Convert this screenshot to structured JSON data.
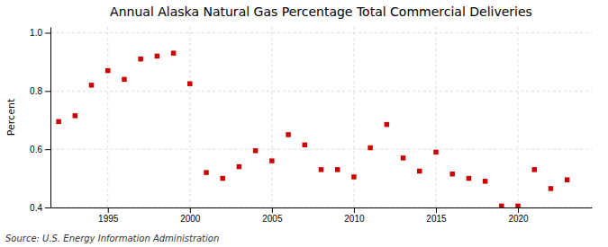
{
  "chart_data": {
    "type": "scatter",
    "title": "Annual Alaska Natural Gas Percentage Total Commercial Deliveries",
    "ylabel": "Percent",
    "source": "Source: U.S. Energy Information Administration",
    "x": [
      1992,
      1993,
      1994,
      1995,
      1996,
      1997,
      1998,
      1999,
      2000,
      2001,
      2002,
      2003,
      2004,
      2005,
      2006,
      2007,
      2008,
      2009,
      2010,
      2011,
      2012,
      2013,
      2014,
      2015,
      2016,
      2017,
      2018,
      2019,
      2020,
      2021,
      2022,
      2023
    ],
    "values": [
      0.695,
      0.715,
      0.82,
      0.87,
      0.84,
      0.91,
      0.92,
      0.93,
      0.825,
      0.52,
      0.5,
      0.54,
      0.595,
      0.56,
      0.65,
      0.615,
      0.53,
      0.53,
      0.505,
      0.605,
      0.685,
      0.57,
      0.525,
      0.59,
      0.515,
      0.5,
      0.49,
      0.405,
      0.405,
      0.53,
      0.465,
      0.495
    ],
    "color": "#cc0000",
    "marker": "square",
    "xlim": [
      1991.5,
      2024.5
    ],
    "ylim": [
      0.4,
      1.02
    ],
    "xticks": [
      1995,
      2000,
      2005,
      2010,
      2015,
      2020
    ],
    "yticks": [
      0.4,
      0.6,
      0.8,
      {
        "value": 1.0,
        "label": "1.0"
      }
    ],
    "grid": true
  }
}
